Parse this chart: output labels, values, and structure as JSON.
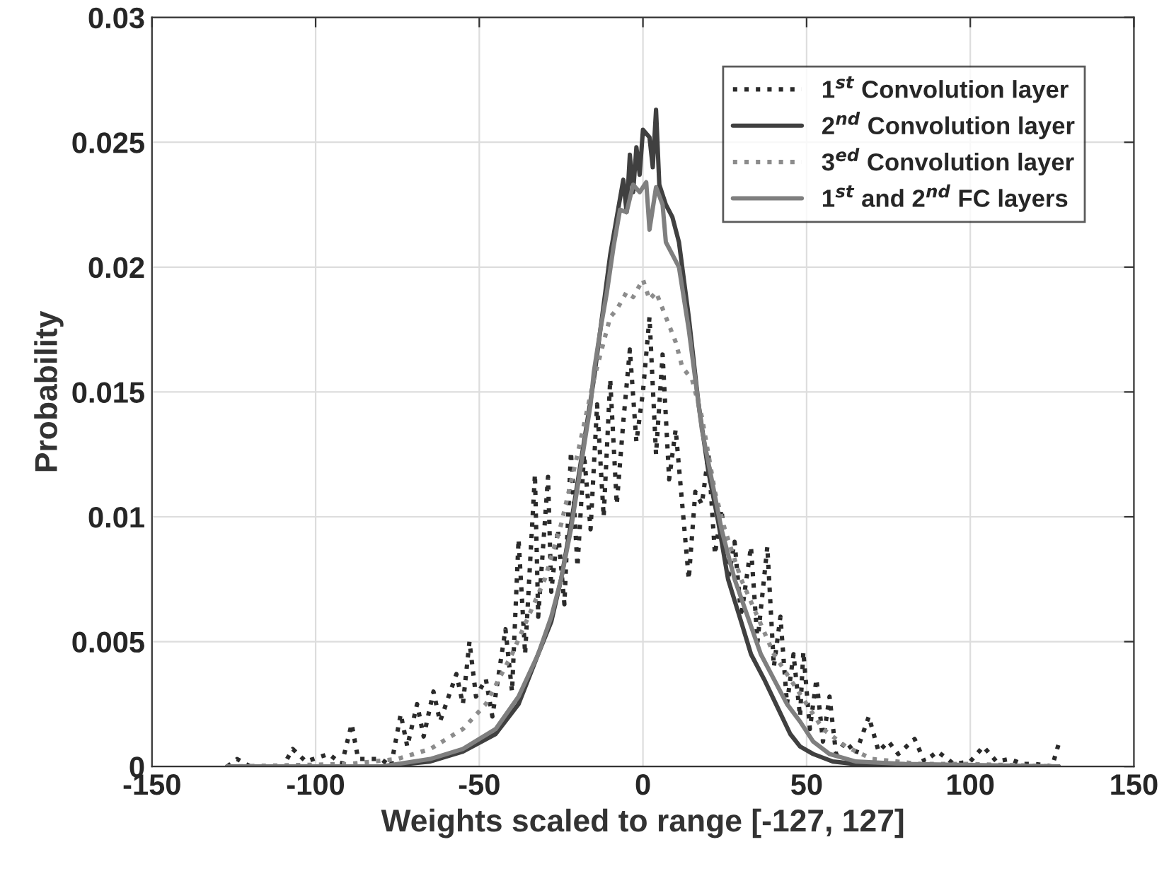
{
  "chart_data": {
    "type": "line",
    "xlabel": "Weights scaled to range [-127, 127]",
    "ylabel": "Probability",
    "xlim": [
      -150,
      150
    ],
    "xticks": [
      -150,
      -100,
      -50,
      0,
      50,
      100,
      150
    ],
    "ylim": [
      0,
      0.03
    ],
    "yticks": [
      0,
      0.005,
      0.01,
      0.015,
      0.02,
      0.025,
      0.03
    ],
    "grid": true,
    "legend": "top right",
    "marker": "none",
    "series": [
      {
        "name": "1$^{st}$ Convolution layer",
        "color": "#2a2a2a",
        "line_style": "dotted",
        "x": [
          -127,
          -124,
          -120,
          -110,
          -107,
          -103,
          -96,
          -92,
          -89,
          -87,
          -80,
          -77,
          -74,
          -72,
          -69,
          -67,
          -64,
          -62,
          -57,
          -55,
          -53,
          -51,
          -48,
          -46,
          -42,
          -40,
          -38,
          -36,
          -33,
          -32,
          -29,
          -28,
          -26,
          -24,
          -22,
          -20,
          -18,
          -16,
          -14,
          -12,
          -10,
          -8,
          -6,
          -4,
          -2,
          0,
          2,
          4,
          6,
          8,
          10,
          12,
          14,
          16,
          18,
          20,
          22,
          24,
          26,
          28,
          30,
          33,
          35,
          38,
          40,
          42,
          44,
          46,
          48,
          49,
          51,
          53,
          55,
          57,
          59,
          62,
          65,
          69,
          72,
          75,
          78,
          83,
          86,
          90,
          95,
          100,
          104,
          108,
          112,
          116,
          120,
          125,
          127
        ],
        "values": [
          0,
          0.0003,
          0,
          0,
          0.0007,
          0.0002,
          0.0005,
          0.0001,
          0.0017,
          0.0003,
          0.0003,
          0,
          0.0021,
          0.0008,
          0.0025,
          0.0012,
          0.003,
          0.0018,
          0.0037,
          0.0025,
          0.005,
          0.0028,
          0.0035,
          0.002,
          0.0055,
          0.003,
          0.0091,
          0.0045,
          0.0117,
          0.006,
          0.0116,
          0.007,
          0.0095,
          0.0065,
          0.0126,
          0.008,
          0.0125,
          0.0095,
          0.0145,
          0.01,
          0.0155,
          0.0105,
          0.0138,
          0.0167,
          0.013,
          0.015,
          0.018,
          0.0125,
          0.0165,
          0.0115,
          0.0135,
          0.0105,
          0.0075,
          0.011,
          0.0105,
          0.0125,
          0.0085,
          0.0103,
          0.0075,
          0.009,
          0.006,
          0.0088,
          0.005,
          0.0088,
          0.004,
          0.006,
          0.0025,
          0.0045,
          0.002,
          0.0046,
          0.0015,
          0.0035,
          0.001,
          0.0028,
          0.0005,
          0.001,
          0.0005,
          0.002,
          0.0006,
          0.001,
          0.0005,
          0.0011,
          0.0002,
          0.0006,
          0.0001,
          0.0002,
          0.0008,
          0.0002,
          0.0003,
          0.0001,
          0.0001,
          0,
          0.0009
        ]
      },
      {
        "name": "2$^{nd}$ Convolution layer",
        "color": "#404040",
        "line_style": "solid",
        "x": [
          -127,
          -80,
          -65,
          -55,
          -45,
          -38,
          -32,
          -28,
          -25,
          -22,
          -18,
          -15,
          -12,
          -10,
          -8,
          -6,
          -5,
          -4,
          -3,
          -2,
          -1,
          0,
          2,
          3,
          4,
          5,
          7,
          9,
          11,
          14,
          17,
          20,
          23,
          26,
          30,
          33,
          37,
          41,
          45,
          48,
          52,
          58,
          65,
          80,
          127
        ],
        "values": [
          0,
          0,
          0.0002,
          0.0006,
          0.0013,
          0.0025,
          0.0045,
          0.0058,
          0.0075,
          0.0097,
          0.013,
          0.0155,
          0.0185,
          0.0205,
          0.022,
          0.0235,
          0.0222,
          0.0245,
          0.023,
          0.0248,
          0.0237,
          0.0255,
          0.0252,
          0.024,
          0.0263,
          0.0233,
          0.0225,
          0.022,
          0.021,
          0.018,
          0.0145,
          0.0118,
          0.0098,
          0.0075,
          0.0058,
          0.0045,
          0.0035,
          0.0024,
          0.0013,
          0.0008,
          0.0005,
          0.0002,
          0.0001,
          0,
          0
        ]
      },
      {
        "name": "3$^{ed}$ Convolution layer",
        "color": "#8c8c8c",
        "line_style": "dotted",
        "x": [
          -127,
          -90,
          -75,
          -65,
          -55,
          -48,
          -40,
          -35,
          -30,
          -25,
          -20,
          -15,
          -10,
          -8,
          -5,
          -3,
          0,
          2,
          4,
          7,
          10,
          12,
          15,
          18,
          22,
          25,
          30,
          35,
          40,
          45,
          50,
          55,
          62,
          70,
          85,
          100,
          127
        ],
        "values": [
          0,
          0.0001,
          0.0003,
          0.0007,
          0.0015,
          0.0025,
          0.0045,
          0.006,
          0.0075,
          0.0097,
          0.0125,
          0.0155,
          0.018,
          0.0183,
          0.019,
          0.0188,
          0.0195,
          0.0187,
          0.019,
          0.018,
          0.017,
          0.016,
          0.0155,
          0.014,
          0.011,
          0.0095,
          0.0075,
          0.006,
          0.0045,
          0.0035,
          0.0025,
          0.0015,
          0.0008,
          0.0003,
          0.0001,
          0.0001,
          0
        ]
      },
      {
        "name": "1$^{st}$ and 2$^{nd}$ FC layers",
        "color": "#7f7f7f",
        "line_style": "solid",
        "x": [
          -127,
          -80,
          -65,
          -55,
          -45,
          -38,
          -32,
          -28,
          -25,
          -22,
          -19,
          -16,
          -15,
          -13,
          -11,
          -9,
          -7,
          -5,
          -3,
          -1,
          1,
          2,
          4,
          6,
          7,
          9,
          11,
          14,
          16,
          18,
          21,
          24,
          28,
          32,
          36,
          40,
          44,
          48,
          52,
          57,
          65,
          80,
          127
        ],
        "values": [
          0,
          0,
          0.0003,
          0.0007,
          0.0015,
          0.0028,
          0.0045,
          0.006,
          0.0075,
          0.0095,
          0.012,
          0.0145,
          0.0158,
          0.0175,
          0.019,
          0.0208,
          0.0223,
          0.0222,
          0.0233,
          0.023,
          0.0234,
          0.0215,
          0.0232,
          0.0225,
          0.021,
          0.0205,
          0.02,
          0.0175,
          0.0155,
          0.0135,
          0.0115,
          0.0095,
          0.0075,
          0.006,
          0.0045,
          0.0035,
          0.0025,
          0.0018,
          0.001,
          0.0005,
          0.0002,
          0.0001,
          0
        ]
      }
    ]
  }
}
